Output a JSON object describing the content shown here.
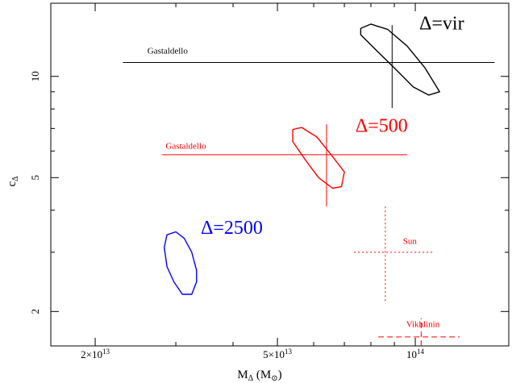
{
  "chart_data": {
    "type": "scatter",
    "title": "",
    "xlabel": "M",
    "xlabel_sub": "Δ",
    "xlabel_unit_open": " (M",
    "xlabel_unit_sub": "⊙",
    "xlabel_unit_close": ")",
    "ylabel": "c",
    "ylabel_sub": "Δ",
    "xscale": "log",
    "yscale": "log",
    "xlim": [
      16000000000000.0,
      160000000000000.0
    ],
    "ylim": [
      1.58,
      16.5
    ],
    "grid": false,
    "x_ticks": [
      {
        "value": 20000000000000.0,
        "mant": "2×10",
        "exp": "13"
      },
      {
        "value": 50000000000000.0,
        "mant": "5×10",
        "exp": "13"
      },
      {
        "value": 100000000000000.0,
        "mant": "10",
        "exp": "14"
      }
    ],
    "y_ticks": [
      {
        "value": 2,
        "label": "2"
      },
      {
        "value": 5,
        "label": "5"
      },
      {
        "value": 10,
        "label": "10"
      }
    ],
    "colors": {
      "vir": "#000000",
      "d500": "#ff0000",
      "d2500": "#0000ff"
    },
    "contours": [
      {
        "name": "Δ=vir",
        "color": "#000000",
        "label": {
          "text": "Δ=vir",
          "x": 102000000000000.0,
          "y": 13.8
        },
        "points": [
          [
            76000000000000.0,
            13.9
          ],
          [
            80000000000000.0,
            14.3
          ],
          [
            87000000000000.0,
            13.8
          ],
          [
            96000000000000.0,
            12.3
          ],
          [
            105000000000000.0,
            10.6
          ],
          [
            113000000000000.0,
            9.0
          ],
          [
            107000000000000.0,
            8.8
          ],
          [
            99000000000000.0,
            9.3
          ],
          [
            90000000000000.0,
            10.6
          ],
          [
            82000000000000.0,
            12.0
          ],
          [
            76000000000000.0,
            13.3
          ],
          [
            76000000000000.0,
            13.9
          ]
        ]
      },
      {
        "name": "Δ=500",
        "color": "#ff0000",
        "label": {
          "text": "Δ=500",
          "x": 74000000000000.0,
          "y": 6.85
        },
        "points": [
          [
            54000000000000.0,
            6.95
          ],
          [
            56500000000000.0,
            7.05
          ],
          [
            61000000000000.0,
            6.6
          ],
          [
            65500000000000.0,
            5.85
          ],
          [
            70000000000000.0,
            5.2
          ],
          [
            69000000000000.0,
            4.7
          ],
          [
            66000000000000.0,
            4.65
          ],
          [
            61500000000000.0,
            5.0
          ],
          [
            57500000000000.0,
            5.65
          ],
          [
            54000000000000.0,
            6.4
          ],
          [
            54000000000000.0,
            6.95
          ]
        ]
      },
      {
        "name": "Δ=2500",
        "color": "#0000ff",
        "label": {
          "text": "Δ=2500",
          "x": 34000000000000.0,
          "y": 3.4
        },
        "points": [
          [
            28300000000000.0,
            3.1
          ],
          [
            28700000000000.0,
            3.38
          ],
          [
            30000000000000.0,
            3.45
          ],
          [
            31300000000000.0,
            3.3
          ],
          [
            32500000000000.0,
            3.0
          ],
          [
            33300000000000.0,
            2.65
          ],
          [
            33300000000000.0,
            2.45
          ],
          [
            32500000000000.0,
            2.25
          ],
          [
            31000000000000.0,
            2.25
          ],
          [
            29700000000000.0,
            2.45
          ],
          [
            28700000000000.0,
            2.72
          ],
          [
            28300000000000.0,
            3.1
          ]
        ]
      }
    ],
    "error_crosses": [
      {
        "name": "Gastaldello (vir)",
        "label": "Gastaldello",
        "color": "#000000",
        "dash": "solid",
        "label_pos": {
          "x": 26000000000000.0,
          "y": 11.7
        },
        "x": 89000000000000.0,
        "xerr": [
          23000000000000.0,
          149000000000000.0
        ],
        "y": 11.0,
        "yerr": [
          8.05,
          14.2
        ]
      },
      {
        "name": "Gastaldello (500)",
        "label": "Gastaldello",
        "color": "#ff0000",
        "dash": "solid",
        "label_pos": {
          "x": 28500000000000.0,
          "y": 6.1
        },
        "x": 64000000000000.0,
        "xerr": [
          28000000000000.0,
          96000000000000.0
        ],
        "y": 5.85,
        "yerr": [
          4.1,
          7.2
        ]
      },
      {
        "name": "Sun",
        "label": "Sun",
        "color": "#ff0000",
        "dash": "dotted",
        "label_pos": {
          "x": 94000000000000.0,
          "y": 3.18
        },
        "x": 86000000000000.0,
        "xerr": [
          73500000000000.0,
          110000000000000.0
        ],
        "y": 3.0,
        "yerr": [
          2.15,
          4.15
        ]
      },
      {
        "name": "Vikhlinin",
        "label": "Vikhlinin",
        "color": "#ff0000",
        "dash": "dashed",
        "label_pos": {
          "x": 95500000000000.0,
          "y": 1.8
        },
        "x": 103000000000000.0,
        "xerr": [
          83000000000000.0,
          125000000000000.0
        ],
        "y": 1.68,
        "yerr": [
          1.58,
          1.91
        ]
      }
    ]
  }
}
